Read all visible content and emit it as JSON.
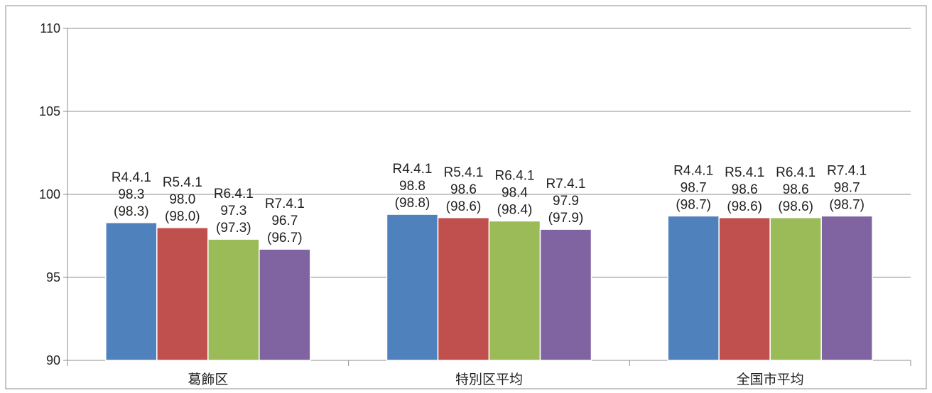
{
  "chart_data": {
    "type": "bar",
    "ylim": [
      90,
      110
    ],
    "yticks": [
      90,
      95,
      100,
      105,
      110
    ],
    "grid": true,
    "categories": [
      "葛飾区",
      "特別区平均",
      "全国市平均"
    ],
    "series": [
      {
        "name": "R4.4.1",
        "color": "#4f81bd",
        "values": [
          98.3,
          98.8,
          98.7
        ],
        "labels": [
          "98.3",
          "98.8",
          "98.7"
        ],
        "sublabels": [
          "(98.3)",
          "(98.8)",
          "(98.7)"
        ]
      },
      {
        "name": "R5.4.1",
        "color": "#c0504d",
        "values": [
          98.0,
          98.6,
          98.6
        ],
        "labels": [
          "98.0",
          "98.6",
          "98.6"
        ],
        "sublabels": [
          "(98.0)",
          "(98.6)",
          "(98.6)"
        ]
      },
      {
        "name": "R6.4.1",
        "color": "#9bbb59",
        "values": [
          97.3,
          98.4,
          98.6
        ],
        "labels": [
          "97.3",
          "98.4",
          "98.6"
        ],
        "sublabels": [
          "(97.3)",
          "(98.4)",
          "(98.6)"
        ]
      },
      {
        "name": "R7.4.1",
        "color": "#8064a2",
        "values": [
          96.7,
          97.9,
          98.7
        ],
        "labels": [
          "96.7",
          "97.9",
          "98.7"
        ],
        "sublabels": [
          "(96.7)",
          "(97.9)",
          "(98.7)"
        ]
      }
    ]
  }
}
